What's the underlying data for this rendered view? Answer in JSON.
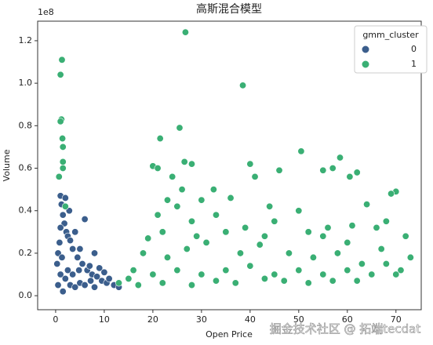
{
  "chart_data": {
    "type": "scatter",
    "title": "高斯混合模型",
    "x_label": "Open Price",
    "y_label": "Volume",
    "y_offset_label": "1e8",
    "legend_title": "gmm_cluster",
    "legend_position": "upper right",
    "watermark": "掘金技术社区 @ 拓端tecdat",
    "xlim": [
      -3.7,
      75.2
    ],
    "ylim": [
      -0.066,
      1.292
    ],
    "xticks": [
      0,
      10,
      20,
      30,
      40,
      50,
      60,
      70
    ],
    "yticks": [
      {
        "value": 0,
        "label": "0.0"
      },
      0.2,
      0.4,
      0.6,
      0.8,
      {
        "value": 1,
        "label": "1.0"
      },
      1.2
    ],
    "series": [
      {
        "name": "0",
        "color": "#3b5e8c",
        "x": [
          0.5,
          1,
          1.2,
          1.5,
          2,
          2.2,
          0.8,
          1.8,
          2.5,
          3,
          3.5,
          4,
          4.5,
          5,
          5.5,
          6,
          6.5,
          7,
          7.5,
          8,
          8.5,
          9,
          9.5,
          10,
          10.5,
          11,
          12,
          13,
          1,
          2,
          3,
          4,
          5,
          1.5,
          0.5,
          2.5,
          3.5,
          6,
          8,
          1,
          0.3,
          2.8,
          1.3,
          4.8,
          7.2
        ],
        "values": [
          0.2,
          0.47,
          0.43,
          0.38,
          0.46,
          0.3,
          0.25,
          0.34,
          0.28,
          0.26,
          0.22,
          0.3,
          0.18,
          0.22,
          0.15,
          0.36,
          0.12,
          0.14,
          0.1,
          0.2,
          0.09,
          0.13,
          0.07,
          0.11,
          0.06,
          0.08,
          0.05,
          0.04,
          0.1,
          0.08,
          0.05,
          0.04,
          0.06,
          0.02,
          0.05,
          0.12,
          0.1,
          0.05,
          0.04,
          0.32,
          0.15,
          0.4,
          0.18,
          0.12,
          0.07
        ]
      },
      {
        "name": "1",
        "color": "#3aaf74",
        "x": [
          1,
          1.3,
          1.2,
          1,
          1.4,
          1.5,
          1.5,
          0.7,
          1.5,
          2,
          26.7,
          38.5,
          25.5,
          21.5,
          26.5,
          28,
          24,
          50.5,
          58.5,
          40,
          57,
          55,
          46,
          62,
          60.5,
          41,
          70,
          69,
          20,
          21,
          30,
          32.5,
          36,
          44,
          64,
          66,
          72,
          25,
          28,
          22,
          19,
          35,
          45,
          52,
          55,
          60,
          67,
          73,
          18,
          23,
          27,
          31,
          38,
          42,
          48,
          53,
          58,
          63,
          68,
          71,
          15,
          20,
          25,
          30,
          35,
          40,
          45,
          50,
          55,
          60,
          65,
          70,
          17,
          22,
          28,
          33,
          37,
          43,
          47,
          52,
          57,
          62,
          33,
          39,
          50,
          56,
          26,
          23,
          21,
          29,
          43,
          61,
          68,
          13,
          16
        ],
        "values": [
          1.04,
          1.11,
          0.83,
          0.82,
          0.74,
          0.7,
          0.63,
          0.56,
          0.6,
          0.42,
          1.24,
          0.99,
          0.79,
          0.74,
          0.63,
          0.62,
          0.56,
          0.68,
          0.65,
          0.62,
          0.6,
          0.59,
          0.59,
          0.58,
          0.56,
          0.56,
          0.49,
          0.48,
          0.61,
          0.6,
          0.45,
          0.5,
          0.46,
          0.42,
          0.43,
          0.32,
          0.28,
          0.42,
          0.35,
          0.3,
          0.27,
          0.3,
          0.35,
          0.3,
          0.28,
          0.25,
          0.22,
          0.18,
          0.2,
          0.18,
          0.22,
          0.25,
          0.2,
          0.24,
          0.2,
          0.18,
          0.2,
          0.15,
          0.15,
          0.12,
          0.08,
          0.1,
          0.12,
          0.1,
          0.12,
          0.14,
          0.1,
          0.12,
          0.1,
          0.12,
          0.1,
          0.1,
          0.05,
          0.06,
          0.05,
          0.07,
          0.06,
          0.08,
          0.07,
          0.06,
          0.07,
          0.07,
          0.38,
          0.32,
          0.4,
          0.32,
          0.5,
          0.45,
          0.38,
          0.28,
          0.28,
          0.33,
          0.35,
          0.06,
          0.12
        ]
      }
    ]
  }
}
